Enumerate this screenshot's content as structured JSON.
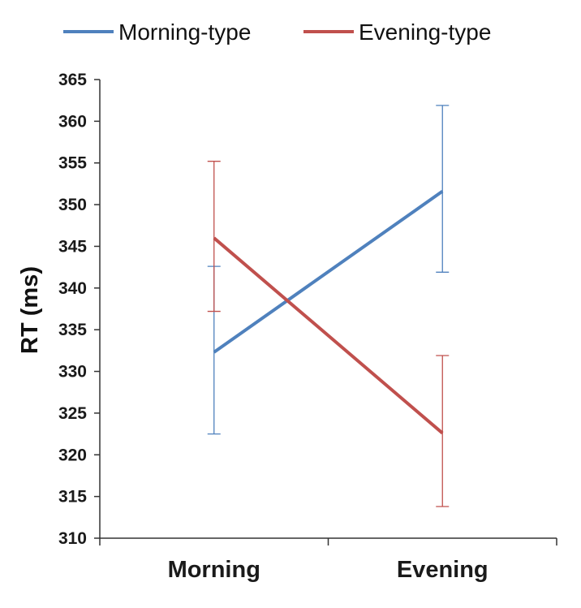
{
  "chart_data": {
    "type": "line",
    "title": "",
    "xlabel": "",
    "ylabel": "RT (ms)",
    "categories": [
      "Morning",
      "Evening"
    ],
    "ylim": [
      310,
      365
    ],
    "yticks": [
      310,
      315,
      320,
      325,
      330,
      335,
      340,
      345,
      350,
      355,
      360,
      365
    ],
    "grid": false,
    "legend_position": "top",
    "series": [
      {
        "name": "Morning-type",
        "color": "#4F81BD",
        "values": [
          332.3,
          351.6
        ],
        "error_low": [
          322.5,
          341.9
        ],
        "error_high": [
          342.6,
          361.9
        ]
      },
      {
        "name": "Evening-type",
        "color": "#C0504D",
        "values": [
          346.0,
          322.6
        ],
        "error_low": [
          337.2,
          313.8
        ],
        "error_high": [
          355.2,
          331.9
        ]
      }
    ]
  }
}
